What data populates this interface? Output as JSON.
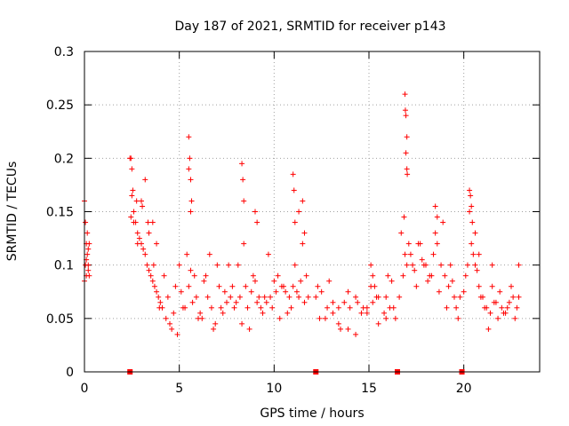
{
  "chart_data": {
    "type": "scatter",
    "title": "Day 187 of 2021, SRMTID for receiver p143",
    "xlabel": "GPS time / hours",
    "ylabel": "SRMTID / TECUs",
    "xlim": [
      0,
      24
    ],
    "ylim": [
      0,
      0.3
    ],
    "xticks": [
      0,
      5,
      10,
      15,
      20
    ],
    "xtick_labels": [
      "0",
      "5",
      "10",
      "15",
      "20"
    ],
    "yticks": [
      0,
      0.05,
      0.1,
      0.15,
      0.2,
      0.25,
      0.3
    ],
    "ytick_labels": [
      "0",
      "0.05",
      "0.1",
      "0.15",
      "0.2",
      "0.25",
      "0.3"
    ],
    "grid": true,
    "marker": "+",
    "color": "#ff0000",
    "series": [
      {
        "name": "SRMTID",
        "x": [
          0.0,
          0.05,
          0.1,
          0.15,
          0.2,
          0.25,
          0.0,
          0.1,
          0.2,
          0.05,
          0.15,
          0.25,
          0.1,
          0.2,
          2.4,
          2.45,
          2.5,
          2.55,
          2.6,
          2.7,
          2.8,
          2.9,
          3.0,
          3.1,
          3.2,
          3.3,
          3.4,
          3.5,
          3.6,
          3.7,
          3.8,
          3.9,
          4.0,
          2.5,
          2.6,
          2.8,
          3.0,
          3.2,
          3.4,
          3.6,
          3.8,
          2.45,
          2.75,
          3.05,
          3.35,
          3.65,
          3.95,
          4.1,
          4.3,
          4.5,
          4.7,
          4.9,
          5.1,
          5.3,
          5.5,
          5.7,
          5.9,
          6.1,
          6.3,
          6.5,
          6.7,
          6.9,
          7.1,
          7.3,
          7.5,
          7.7,
          7.9,
          4.2,
          4.6,
          5.0,
          5.4,
          5.8,
          6.2,
          6.6,
          7.0,
          7.4,
          7.8,
          4.4,
          4.8,
          5.2,
          5.6,
          6.0,
          6.4,
          6.8,
          7.2,
          7.6,
          5.5,
          5.55,
          5.6,
          5.65,
          5.5,
          5.6,
          8.0,
          8.2,
          8.4,
          8.6,
          8.8,
          9.0,
          9.2,
          9.4,
          9.6,
          9.8,
          10.0,
          10.2,
          10.4,
          10.6,
          10.8,
          11.0,
          11.2,
          11.4,
          11.6,
          11.8,
          8.1,
          8.5,
          8.9,
          9.3,
          9.7,
          10.1,
          10.5,
          10.9,
          11.3,
          11.7,
          8.3,
          8.7,
          9.1,
          9.5,
          9.9,
          10.3,
          10.7,
          11.1,
          11.5,
          8.3,
          8.35,
          8.4,
          9.0,
          9.1,
          11.0,
          11.05,
          11.1,
          11.3,
          11.5,
          11.6,
          12.2,
          12.5,
          12.8,
          13.1,
          13.4,
          13.7,
          14.0,
          14.3,
          14.6,
          14.9,
          15.2,
          15.5,
          15.8,
          16.1,
          16.4,
          12.3,
          12.7,
          13.1,
          13.5,
          13.9,
          14.3,
          14.7,
          15.1,
          15.5,
          15.9,
          16.3,
          12.4,
          12.9,
          13.4,
          13.9,
          14.4,
          14.9,
          15.4,
          15.9,
          15.1,
          15.2,
          15.3,
          16.0,
          16.2,
          16.6,
          16.8,
          17.0,
          17.2,
          17.4,
          17.6,
          17.8,
          18.0,
          18.2,
          18.4,
          18.6,
          18.8,
          19.0,
          19.2,
          19.4,
          19.6,
          19.8,
          16.7,
          17.1,
          17.5,
          17.9,
          18.3,
          18.7,
          19.1,
          19.5,
          16.9,
          17.3,
          17.7,
          18.1,
          18.5,
          18.9,
          19.3,
          19.7,
          16.9,
          16.92,
          16.95,
          17.0,
          16.95,
          17.0,
          17.02,
          16.85,
          18.5,
          18.6,
          20.0,
          20.2,
          20.4,
          20.6,
          20.8,
          21.0,
          21.2,
          21.4,
          21.6,
          21.8,
          22.0,
          22.2,
          22.4,
          22.6,
          22.8,
          20.1,
          20.5,
          20.9,
          21.3,
          21.7,
          22.1,
          22.5,
          22.9,
          20.3,
          20.7,
          21.1,
          21.5,
          21.9,
          22.3,
          22.7,
          20.3,
          20.35,
          20.4,
          20.45,
          20.6,
          20.8,
          21.5,
          22.9
        ],
        "y": [
          0.16,
          0.14,
          0.12,
          0.11,
          0.095,
          0.09,
          0.085,
          0.105,
          0.115,
          0.1,
          0.13,
          0.12,
          0.09,
          0.1,
          0.2,
          0.2,
          0.19,
          0.17,
          0.15,
          0.14,
          0.13,
          0.125,
          0.12,
          0.115,
          0.11,
          0.1,
          0.095,
          0.09,
          0.085,
          0.08,
          0.075,
          0.07,
          0.065,
          0.165,
          0.14,
          0.12,
          0.16,
          0.18,
          0.13,
          0.14,
          0.12,
          0.145,
          0.16,
          0.155,
          0.14,
          0.1,
          0.06,
          0.06,
          0.05,
          0.045,
          0.055,
          0.035,
          0.075,
          0.06,
          0.08,
          0.065,
          0.07,
          0.055,
          0.085,
          0.07,
          0.06,
          0.045,
          0.08,
          0.055,
          0.065,
          0.07,
          0.06,
          0.09,
          0.04,
          0.1,
          0.11,
          0.09,
          0.05,
          0.11,
          0.1,
          0.075,
          0.08,
          0.07,
          0.08,
          0.06,
          0.095,
          0.05,
          0.09,
          0.04,
          0.06,
          0.1,
          0.22,
          0.2,
          0.18,
          0.16,
          0.19,
          0.15,
          0.065,
          0.07,
          0.12,
          0.06,
          0.075,
          0.085,
          0.07,
          0.055,
          0.065,
          0.07,
          0.085,
          0.09,
          0.08,
          0.075,
          0.07,
          0.08,
          0.075,
          0.085,
          0.065,
          0.07,
          0.1,
          0.08,
          0.09,
          0.06,
          0.11,
          0.075,
          0.08,
          0.06,
          0.07,
          0.09,
          0.045,
          0.04,
          0.065,
          0.07,
          0.06,
          0.05,
          0.055,
          0.1,
          0.12,
          0.195,
          0.18,
          0.16,
          0.15,
          0.14,
          0.185,
          0.17,
          0.14,
          0.15,
          0.16,
          0.13,
          0.07,
          0.075,
          0.06,
          0.055,
          0.045,
          0.065,
          0.06,
          0.07,
          0.055,
          0.06,
          0.065,
          0.07,
          0.055,
          0.06,
          0.05,
          0.08,
          0.05,
          0.065,
          0.04,
          0.075,
          0.035,
          0.06,
          0.08,
          0.045,
          0.07,
          0.06,
          0.05,
          0.085,
          0.06,
          0.04,
          0.065,
          0.055,
          0.07,
          0.05,
          0.1,
          0.09,
          0.08,
          0.09,
          0.085,
          0.07,
          0.09,
          0.1,
          0.11,
          0.095,
          0.12,
          0.105,
          0.1,
          0.09,
          0.11,
          0.12,
          0.1,
          0.09,
          0.08,
          0.085,
          0.06,
          0.07,
          0.13,
          0.12,
          0.08,
          0.1,
          0.09,
          0.075,
          0.06,
          0.07,
          0.11,
          0.1,
          0.12,
          0.085,
          0.13,
          0.14,
          0.1,
          0.05,
          0.26,
          0.245,
          0.24,
          0.22,
          0.205,
          0.19,
          0.185,
          0.145,
          0.155,
          0.145,
          0.075,
          0.1,
          0.12,
          0.1,
          0.08,
          0.07,
          0.06,
          0.055,
          0.065,
          0.05,
          0.06,
          0.055,
          0.065,
          0.07,
          0.06,
          0.09,
          0.11,
          0.07,
          0.04,
          0.065,
          0.055,
          0.08,
          0.07,
          0.15,
          0.095,
          0.06,
          0.08,
          0.075,
          0.06,
          0.05,
          0.17,
          0.165,
          0.155,
          0.14,
          0.13,
          0.11,
          0.1,
          0.1
        ]
      }
    ],
    "gap_markers_x": [
      2.4,
      12.2,
      16.5,
      19.9
    ]
  }
}
